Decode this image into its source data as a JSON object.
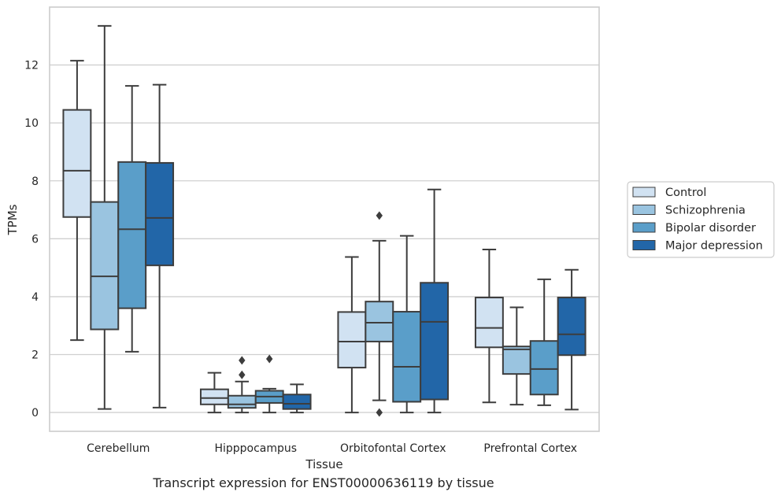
{
  "chart_data": {
    "type": "box",
    "categories": [
      "Cerebellum",
      "Hipppocampus",
      "Orbitofontal Cortex",
      "Prefrontal Cortex"
    ],
    "xlabel": "Tissue",
    "ylabel": "TPMs",
    "ylim": [
      -0.65,
      14.0
    ],
    "yticks": [
      0,
      2,
      4,
      6,
      8,
      10,
      12
    ],
    "grid": "horizontal",
    "legend_position": "right",
    "series": [
      {
        "name": "Control",
        "color": "#d1e2f2",
        "boxes": [
          {
            "whislo": 2.5,
            "q1": 6.75,
            "med": 8.35,
            "q3": 10.45,
            "whishi": 12.15,
            "fliers": []
          },
          {
            "whislo": 0.0,
            "q1": 0.28,
            "med": 0.5,
            "q3": 0.8,
            "whishi": 1.37,
            "fliers": []
          },
          {
            "whislo": 0.0,
            "q1": 1.55,
            "med": 2.45,
            "q3": 3.47,
            "whishi": 5.37,
            "fliers": []
          },
          {
            "whislo": 0.35,
            "q1": 2.25,
            "med": 2.92,
            "q3": 3.97,
            "whishi": 5.63,
            "fliers": []
          }
        ]
      },
      {
        "name": "Schizophrenia",
        "color": "#9ac4e0",
        "boxes": [
          {
            "whislo": 0.12,
            "q1": 2.87,
            "med": 4.7,
            "q3": 7.27,
            "whishi": 13.35,
            "fliers": []
          },
          {
            "whislo": 0.0,
            "q1": 0.16,
            "med": 0.28,
            "q3": 0.58,
            "whishi": 1.07,
            "fliers": [
              1.8,
              1.3
            ]
          },
          {
            "whislo": 0.42,
            "q1": 2.45,
            "med": 3.1,
            "q3": 3.83,
            "whishi": 5.93,
            "fliers": [
              6.8,
              0.0
            ]
          },
          {
            "whislo": 0.27,
            "q1": 1.33,
            "med": 2.18,
            "q3": 2.28,
            "whishi": 3.63,
            "fliers": []
          }
        ]
      },
      {
        "name": "Bipolar disorder",
        "color": "#5a9ec9",
        "boxes": [
          {
            "whislo": 2.1,
            "q1": 3.6,
            "med": 6.33,
            "q3": 8.65,
            "whishi": 11.28,
            "fliers": []
          },
          {
            "whislo": 0.0,
            "q1": 0.33,
            "med": 0.55,
            "q3": 0.75,
            "whishi": 0.82,
            "fliers": [
              1.85
            ]
          },
          {
            "whislo": 0.0,
            "q1": 0.37,
            "med": 1.58,
            "q3": 3.48,
            "whishi": 6.1,
            "fliers": []
          },
          {
            "whislo": 0.25,
            "q1": 0.62,
            "med": 1.5,
            "q3": 2.47,
            "whishi": 4.6,
            "fliers": []
          }
        ]
      },
      {
        "name": "Major depression",
        "color": "#2266a8",
        "boxes": [
          {
            "whislo": 0.17,
            "q1": 5.08,
            "med": 6.72,
            "q3": 8.62,
            "whishi": 11.32,
            "fliers": []
          },
          {
            "whislo": 0.0,
            "q1": 0.12,
            "med": 0.3,
            "q3": 0.62,
            "whishi": 0.97,
            "fliers": []
          },
          {
            "whislo": 0.0,
            "q1": 0.45,
            "med": 3.13,
            "q3": 4.48,
            "whishi": 7.7,
            "fliers": []
          },
          {
            "whislo": 0.1,
            "q1": 1.98,
            "med": 2.7,
            "q3": 3.97,
            "whishi": 4.93,
            "fliers": []
          }
        ]
      }
    ]
  },
  "caption": "Transcript expression for ENST00000636119 by tissue"
}
